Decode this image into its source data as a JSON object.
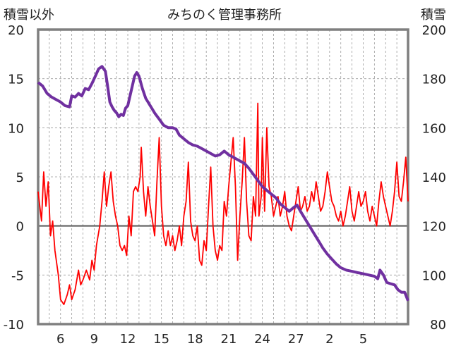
{
  "chart_data": {
    "type": "line",
    "title": "みちのく管理事務所",
    "y_left_label": "積雪以外",
    "y_right_label": "積雪",
    "x_ticks": [
      "6",
      "9",
      "12",
      "15",
      "18",
      "21",
      "24",
      "27",
      "2",
      "5"
    ],
    "y_left_ticks": [
      "20",
      "15",
      "10",
      "5",
      "0",
      "-5",
      "-10"
    ],
    "y_right_ticks": [
      "200",
      "180",
      "160",
      "140",
      "120",
      "100",
      "80"
    ],
    "x_range_days": [
      0,
      33
    ],
    "y_left_range": [
      -10,
      20
    ],
    "y_right_range": [
      80,
      200
    ],
    "grid": "vertical dashed daily, horizontal dashed at ticks",
    "colors": {
      "temperature": "#ff0000",
      "snow_depth": "#7030a0",
      "axis": "#7f7f7f",
      "zero_line": "#595959"
    },
    "series": [
      {
        "axis": "left",
        "color": "#ff0000",
        "points": [
          [
            0.0,
            3.5
          ],
          [
            0.3,
            0.5
          ],
          [
            0.5,
            5.5
          ],
          [
            0.7,
            2.0
          ],
          [
            0.9,
            4.5
          ],
          [
            1.1,
            -1.0
          ],
          [
            1.3,
            0.5
          ],
          [
            1.5,
            -2.5
          ],
          [
            1.8,
            -5.0
          ],
          [
            2.0,
            -7.5
          ],
          [
            2.3,
            -8.0
          ],
          [
            2.6,
            -7.0
          ],
          [
            2.8,
            -6.0
          ],
          [
            3.0,
            -7.5
          ],
          [
            3.3,
            -6.5
          ],
          [
            3.6,
            -4.5
          ],
          [
            3.8,
            -6.0
          ],
          [
            4.0,
            -5.5
          ],
          [
            4.3,
            -4.5
          ],
          [
            4.6,
            -5.5
          ],
          [
            4.8,
            -3.5
          ],
          [
            5.0,
            -4.5
          ],
          [
            5.2,
            -2.0
          ],
          [
            5.5,
            0.0
          ],
          [
            5.7,
            2.5
          ],
          [
            5.9,
            5.5
          ],
          [
            6.1,
            2.0
          ],
          [
            6.3,
            4.0
          ],
          [
            6.5,
            5.5
          ],
          [
            6.7,
            2.5
          ],
          [
            6.9,
            1.0
          ],
          [
            7.1,
            0.0
          ],
          [
            7.3,
            -2.0
          ],
          [
            7.5,
            -2.5
          ],
          [
            7.7,
            -2.0
          ],
          [
            7.9,
            -3.0
          ],
          [
            8.1,
            1.0
          ],
          [
            8.3,
            -1.0
          ],
          [
            8.5,
            3.5
          ],
          [
            8.7,
            4.0
          ],
          [
            8.9,
            3.5
          ],
          [
            9.1,
            5.0
          ],
          [
            9.2,
            8.0
          ],
          [
            9.4,
            3.5
          ],
          [
            9.6,
            1.0
          ],
          [
            9.8,
            4.0
          ],
          [
            10.0,
            2.0
          ],
          [
            10.2,
            0.5
          ],
          [
            10.4,
            -1.0
          ],
          [
            10.6,
            4.5
          ],
          [
            10.8,
            9.0
          ],
          [
            11.0,
            2.0
          ],
          [
            11.2,
            -1.0
          ],
          [
            11.4,
            -2.0
          ],
          [
            11.6,
            -0.5
          ],
          [
            11.8,
            -2.0
          ],
          [
            12.0,
            -1.0
          ],
          [
            12.2,
            -2.5
          ],
          [
            12.4,
            -1.5
          ],
          [
            12.6,
            0.0
          ],
          [
            12.8,
            -2.0
          ],
          [
            13.0,
            1.0
          ],
          [
            13.2,
            2.5
          ],
          [
            13.4,
            6.5
          ],
          [
            13.6,
            0.5
          ],
          [
            13.8,
            -1.0
          ],
          [
            14.0,
            -1.5
          ],
          [
            14.2,
            0.0
          ],
          [
            14.4,
            -3.5
          ],
          [
            14.6,
            -4.0
          ],
          [
            14.8,
            -1.5
          ],
          [
            15.0,
            -2.5
          ],
          [
            15.2,
            2.0
          ],
          [
            15.4,
            6.0
          ],
          [
            15.6,
            0.0
          ],
          [
            15.8,
            -2.5
          ],
          [
            16.0,
            -3.5
          ],
          [
            16.2,
            -2.0
          ],
          [
            16.4,
            -2.5
          ],
          [
            16.6,
            2.5
          ],
          [
            16.8,
            1.0
          ],
          [
            17.0,
            4.0
          ],
          [
            17.2,
            6.5
          ],
          [
            17.4,
            9.0
          ],
          [
            17.6,
            4.0
          ],
          [
            17.8,
            -3.5
          ],
          [
            18.0,
            1.0
          ],
          [
            18.2,
            4.5
          ],
          [
            18.4,
            9.0
          ],
          [
            18.6,
            2.5
          ],
          [
            18.8,
            -1.0
          ],
          [
            19.0,
            -1.5
          ],
          [
            19.2,
            3.0
          ],
          [
            19.4,
            1.0
          ],
          [
            19.6,
            12.5
          ],
          [
            19.7,
            1.0
          ],
          [
            19.9,
            3.0
          ],
          [
            20.0,
            9.0
          ],
          [
            20.2,
            1.5
          ],
          [
            20.4,
            10.0
          ],
          [
            20.6,
            4.0
          ],
          [
            20.8,
            3.0
          ],
          [
            21.0,
            1.0
          ],
          [
            21.2,
            2.0
          ],
          [
            21.4,
            3.0
          ],
          [
            21.6,
            1.0
          ],
          [
            21.8,
            2.0
          ],
          [
            22.0,
            3.5
          ],
          [
            22.2,
            1.0
          ],
          [
            22.4,
            0.0
          ],
          [
            22.6,
            -0.5
          ],
          [
            22.8,
            1.0
          ],
          [
            23.0,
            2.5
          ],
          [
            23.2,
            4.0
          ],
          [
            23.4,
            1.5
          ],
          [
            23.6,
            2.0
          ],
          [
            23.8,
            3.0
          ],
          [
            24.0,
            1.5
          ],
          [
            24.2,
            2.0
          ],
          [
            24.4,
            3.5
          ],
          [
            24.6,
            2.5
          ],
          [
            24.8,
            4.5
          ],
          [
            25.0,
            3.0
          ],
          [
            25.2,
            1.5
          ],
          [
            25.4,
            2.0
          ],
          [
            25.6,
            3.5
          ],
          [
            25.8,
            5.5
          ],
          [
            26.0,
            4.0
          ],
          [
            26.2,
            2.5
          ],
          [
            26.4,
            2.0
          ],
          [
            26.6,
            1.0
          ],
          [
            26.8,
            0.5
          ],
          [
            27.0,
            1.5
          ],
          [
            27.2,
            0.0
          ],
          [
            27.4,
            1.0
          ],
          [
            27.6,
            2.5
          ],
          [
            27.8,
            4.0
          ],
          [
            28.0,
            1.5
          ],
          [
            28.2,
            0.5
          ],
          [
            28.4,
            2.0
          ],
          [
            28.6,
            3.5
          ],
          [
            28.8,
            2.0
          ],
          [
            29.0,
            2.5
          ],
          [
            29.2,
            3.5
          ],
          [
            29.4,
            1.5
          ],
          [
            29.6,
            0.5
          ],
          [
            29.8,
            2.0
          ],
          [
            30.0,
            1.0
          ],
          [
            30.2,
            0.0
          ],
          [
            30.4,
            2.5
          ],
          [
            30.6,
            4.5
          ],
          [
            30.8,
            3.0
          ],
          [
            31.0,
            2.0
          ],
          [
            31.2,
            1.0
          ],
          [
            31.4,
            0.0
          ],
          [
            31.6,
            1.5
          ],
          [
            31.8,
            3.5
          ],
          [
            32.0,
            6.5
          ],
          [
            32.2,
            3.0
          ],
          [
            32.4,
            2.5
          ],
          [
            32.6,
            4.5
          ],
          [
            32.8,
            7.0
          ],
          [
            33.0,
            2.5
          ]
        ]
      },
      {
        "axis": "right",
        "color": "#7030a0",
        "points": [
          [
            0.0,
            178.5
          ],
          [
            0.4,
            177.0
          ],
          [
            0.8,
            174.0
          ],
          [
            1.2,
            172.5
          ],
          [
            1.6,
            171.5
          ],
          [
            2.0,
            170.5
          ],
          [
            2.4,
            169.0
          ],
          [
            2.8,
            168.5
          ],
          [
            3.0,
            173.0
          ],
          [
            3.3,
            172.5
          ],
          [
            3.6,
            174.0
          ],
          [
            3.9,
            173.0
          ],
          [
            4.2,
            176.0
          ],
          [
            4.5,
            175.5
          ],
          [
            4.8,
            178.0
          ],
          [
            5.1,
            181.0
          ],
          [
            5.4,
            184.0
          ],
          [
            5.7,
            185.0
          ],
          [
            6.0,
            183.0
          ],
          [
            6.2,
            177.0
          ],
          [
            6.4,
            170.5
          ],
          [
            6.6,
            168.5
          ],
          [
            6.8,
            167.0
          ],
          [
            7.0,
            166.0
          ],
          [
            7.2,
            164.5
          ],
          [
            7.4,
            165.5
          ],
          [
            7.6,
            165.0
          ],
          [
            7.8,
            168.0
          ],
          [
            8.0,
            169.0
          ],
          [
            8.3,
            175.0
          ],
          [
            8.6,
            181.0
          ],
          [
            8.8,
            182.5
          ],
          [
            9.0,
            181.0
          ],
          [
            9.3,
            176.0
          ],
          [
            9.6,
            172.0
          ],
          [
            10.0,
            169.0
          ],
          [
            10.4,
            166.0
          ],
          [
            10.8,
            163.5
          ],
          [
            11.2,
            161.0
          ],
          [
            11.6,
            160.0
          ],
          [
            12.0,
            160.0
          ],
          [
            12.3,
            159.5
          ],
          [
            12.6,
            157.0
          ],
          [
            13.0,
            155.5
          ],
          [
            13.4,
            154.0
          ],
          [
            13.8,
            153.0
          ],
          [
            14.2,
            152.5
          ],
          [
            14.6,
            151.5
          ],
          [
            15.0,
            150.5
          ],
          [
            15.4,
            149.5
          ],
          [
            15.8,
            148.5
          ],
          [
            16.2,
            149.0
          ],
          [
            16.6,
            150.5
          ],
          [
            17.0,
            149.0
          ],
          [
            17.4,
            148.0
          ],
          [
            17.8,
            147.0
          ],
          [
            18.0,
            146.5
          ],
          [
            18.4,
            145.5
          ],
          [
            18.8,
            143.5
          ],
          [
            19.2,
            141.0
          ],
          [
            19.6,
            138.5
          ],
          [
            20.0,
            136.0
          ],
          [
            20.4,
            134.5
          ],
          [
            20.8,
            133.0
          ],
          [
            21.2,
            131.5
          ],
          [
            21.6,
            129.0
          ],
          [
            22.0,
            127.5
          ],
          [
            22.4,
            126.0
          ],
          [
            22.8,
            127.5
          ],
          [
            23.1,
            128.5
          ],
          [
            23.4,
            126.0
          ],
          [
            23.8,
            123.0
          ],
          [
            24.2,
            120.0
          ],
          [
            24.6,
            117.0
          ],
          [
            25.0,
            114.0
          ],
          [
            25.4,
            111.0
          ],
          [
            25.8,
            108.5
          ],
          [
            26.2,
            106.5
          ],
          [
            26.6,
            104.5
          ],
          [
            27.0,
            103.0
          ],
          [
            27.5,
            102.0
          ],
          [
            28.0,
            101.5
          ],
          [
            28.5,
            101.0
          ],
          [
            29.0,
            100.5
          ],
          [
            29.5,
            100.0
          ],
          [
            30.0,
            99.5
          ],
          [
            30.3,
            98.5
          ],
          [
            30.5,
            102.0
          ],
          [
            30.8,
            100.0
          ],
          [
            31.1,
            97.0
          ],
          [
            31.4,
            96.5
          ],
          [
            31.8,
            96.0
          ],
          [
            32.1,
            94.0
          ],
          [
            32.4,
            93.0
          ],
          [
            32.7,
            93.0
          ],
          [
            33.0,
            89.5
          ]
        ]
      }
    ]
  }
}
